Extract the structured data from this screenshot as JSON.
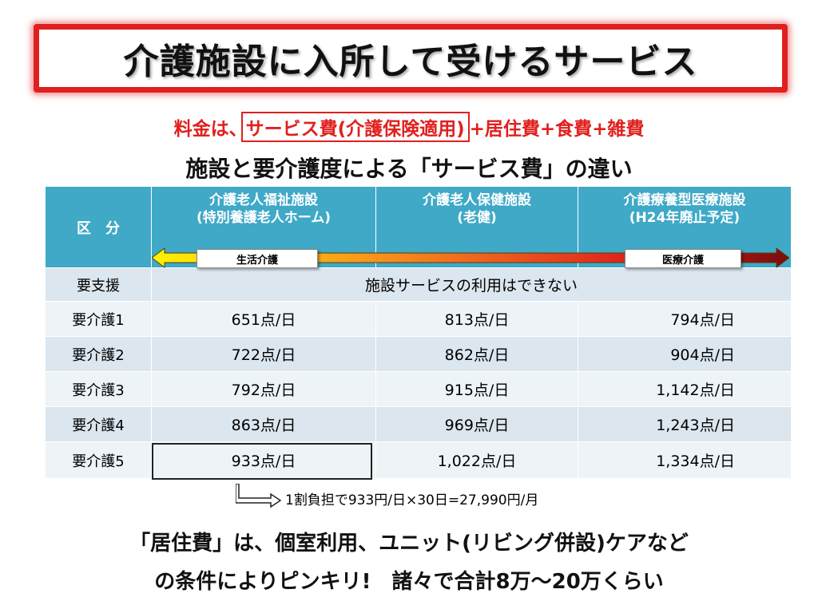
{
  "title": "介護施設に入所して受けるサービス",
  "fee": {
    "prefix": "料金は、",
    "boxed": "サービス費(介護保険適用)",
    "suffix": "+居住費+食費+雑費"
  },
  "subtitle": "施設と要介護度による「サービス費」の違い",
  "table": {
    "corner_label": "区　分",
    "columns": [
      {
        "line1": "介護老人福祉施設",
        "line2": "(特別養護老人ホーム)"
      },
      {
        "line1": "介護老人保健施設",
        "line2": "(老健)"
      },
      {
        "line1": "介護療養型医療施設",
        "line2": "(H24年廃止予定)"
      }
    ],
    "arrow_left_label": "生活介護",
    "arrow_right_label": "医療介護",
    "support_row": {
      "label": "要支援",
      "note": "施設サービスの利用はできない"
    },
    "rows": [
      {
        "label": "要介護1",
        "values": [
          "651点/日",
          "813点/日",
          "794点/日"
        ]
      },
      {
        "label": "要介護2",
        "values": [
          "722点/日",
          "862点/日",
          "904点/日"
        ]
      },
      {
        "label": "要介護3",
        "values": [
          "792点/日",
          "915点/日",
          "1,142点/日"
        ]
      },
      {
        "label": "要介護4",
        "values": [
          "863点/日",
          "969点/日",
          "1,243点/日"
        ]
      },
      {
        "label": "要介護5",
        "values": [
          "933点/日",
          "1,022点/日",
          "1,334点/日"
        ]
      }
    ]
  },
  "note": "1割負担で933円/日×30日=27,990円/月",
  "bottom": {
    "line1": "「居住費」は、個室利用、ユニット(リビング併設)ケアなど",
    "line2": "の条件によりピンキリ!　諸々で合計8万～20万くらい"
  },
  "colors": {
    "accent_red": "#e0201e",
    "header_blue": "#3fa9c7",
    "row_light": "#eef3f7",
    "row_dark": "#dbe6ee"
  }
}
